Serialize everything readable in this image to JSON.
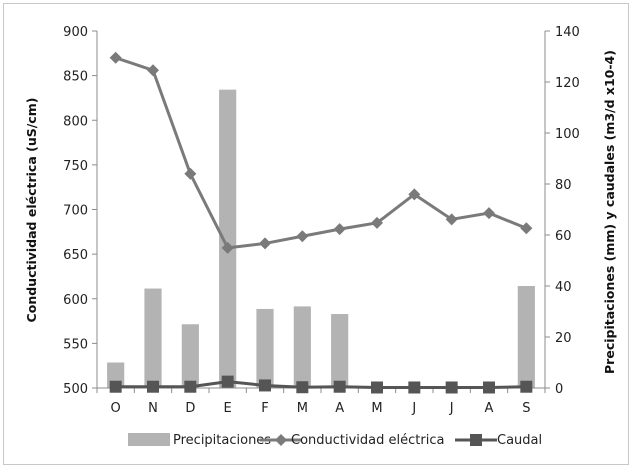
{
  "chart_data": {
    "type": "bar",
    "categories": [
      "O",
      "N",
      "D",
      "E",
      "F",
      "M",
      "A",
      "M",
      "J",
      "J",
      "A",
      "S"
    ],
    "series": [
      {
        "name": "Precipitaciones",
        "kind": "bar",
        "axis": "right",
        "color": "#b3b3b3",
        "values": [
          10,
          39,
          25,
          117,
          31,
          32,
          29,
          0,
          0,
          0,
          0,
          40
        ]
      },
      {
        "name": "Conductividad eléctrica",
        "kind": "line",
        "axis": "left",
        "color": "#7a7a7a",
        "marker": "diamond",
        "values": [
          870,
          856,
          740,
          657,
          662,
          670,
          678,
          685,
          717,
          689,
          696,
          679
        ]
      },
      {
        "name": "Caudal",
        "kind": "line",
        "axis": "right",
        "color": "#555555",
        "marker": "square",
        "values": [
          0.5,
          0.5,
          0.5,
          2.5,
          1.0,
          0.3,
          0.5,
          0.2,
          0.2,
          0.2,
          0.2,
          0.5
        ]
      }
    ],
    "y_left": {
      "label": "Conductividad eléctrica (uS/cm)",
      "ylim": [
        500,
        900
      ],
      "ticks": [
        "500",
        "550",
        "600",
        "650",
        "700",
        "750",
        "800",
        "850",
        "900"
      ]
    },
    "y_right": {
      "label": "Precipitaciones (mm) y caudales (m3/d x10-4)",
      "ylim": [
        0,
        140
      ],
      "ticks": [
        "0",
        "20",
        "40",
        "60",
        "80",
        "100",
        "120",
        "140"
      ]
    },
    "grid": false,
    "legend_position": "bottom"
  }
}
